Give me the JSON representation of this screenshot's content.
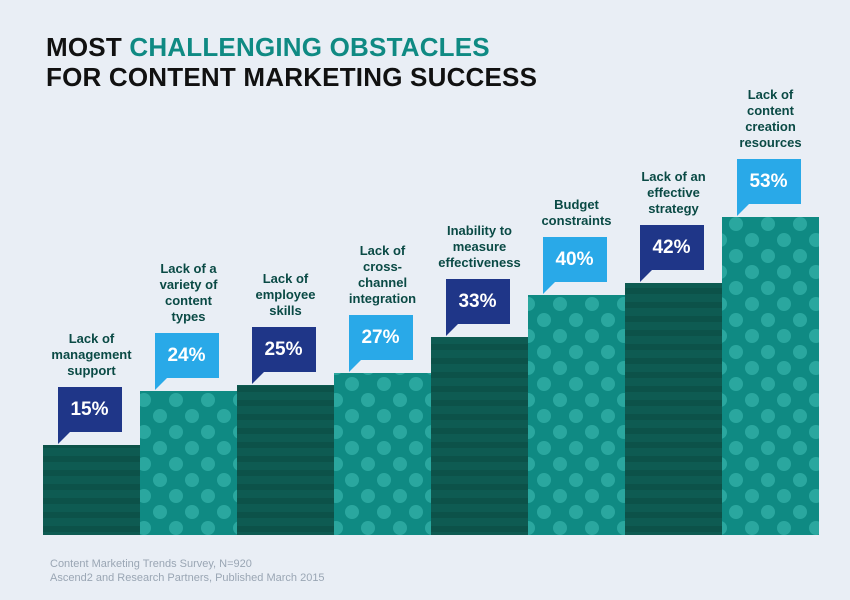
{
  "title": {
    "line1_prefix": "MOST ",
    "line1_accent": "CHALLENGING OBSTACLES",
    "line2": "FOR CONTENT MARKETING SUCCESS"
  },
  "colors": {
    "accent": "#0f8a83",
    "bar_dark": "#0e5b52",
    "bar_teal": "#0f8a83",
    "callout_navy": "#1f3688",
    "callout_sky": "#29a9e8"
  },
  "chart_data": {
    "type": "bar",
    "title": "MOST CHALLENGING OBSTACLES FOR CONTENT MARKETING SUCCESS",
    "categories": [
      "Lack of management support",
      "Lack of a variety of content types",
      "Lack of employee skills",
      "Lack of cross-channel integration",
      "Inability to measure effectiveness",
      "Budget constraints",
      "Lack of an effective strategy",
      "Lack of content creation resources"
    ],
    "category_lines": [
      [
        "Lack of",
        "management",
        "support"
      ],
      [
        "Lack of a",
        "variety of",
        "content",
        "types"
      ],
      [
        "Lack of",
        "employee",
        "skills"
      ],
      [
        "Lack of",
        "cross-",
        "channel",
        "integration"
      ],
      [
        "Inability to",
        "measure",
        "effectiveness"
      ],
      [
        "Budget",
        "constraints"
      ],
      [
        "Lack of an",
        "effective",
        "strategy"
      ],
      [
        "Lack of",
        "content",
        "creation",
        "resources"
      ]
    ],
    "values": [
      15,
      24,
      25,
      27,
      33,
      40,
      42,
      53
    ],
    "value_labels": [
      "15%",
      "24%",
      "25%",
      "27%",
      "33%",
      "40%",
      "42%",
      "53%"
    ],
    "bar_styles": [
      "dark",
      "dotted",
      "dark",
      "dotted",
      "dark",
      "dotted",
      "dark",
      "dotted"
    ],
    "callout_styles": [
      "navy",
      "sky",
      "navy",
      "sky",
      "navy",
      "sky",
      "navy",
      "sky"
    ],
    "ylim": [
      0,
      100
    ],
    "xlabel": "",
    "ylabel": ""
  },
  "source": {
    "line1": "Content Marketing Trends Survey, N=920",
    "line2": "Ascend2 and Research Partners, Published March 2015"
  }
}
